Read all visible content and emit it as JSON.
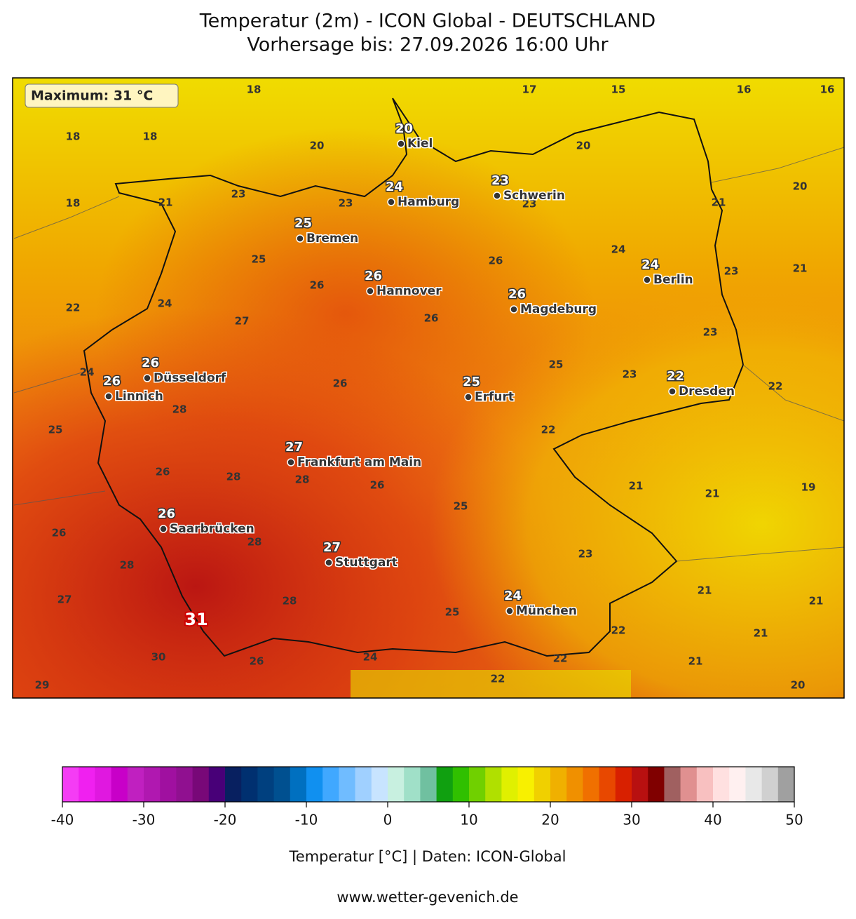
{
  "header": {
    "title": "Temperatur (2m) - ICON Global - DEUTSCHLAND",
    "subtitle": "Vorhersage bis: 27.09.2026 16:00 Uhr"
  },
  "map": {
    "maximum_label": "Maximum: 31 °C",
    "maximum_value": 31,
    "cities": [
      {
        "name": "Kiel",
        "temp": 20
      },
      {
        "name": "Hamburg",
        "temp": 24
      },
      {
        "name": "Schwerin",
        "temp": 23
      },
      {
        "name": "Bremen",
        "temp": 25
      },
      {
        "name": "Hannover",
        "temp": 26
      },
      {
        "name": "Berlin",
        "temp": 24
      },
      {
        "name": "Magdeburg",
        "temp": 26
      },
      {
        "name": "Düsseldorf",
        "temp": 26
      },
      {
        "name": "Linnich",
        "temp": 26
      },
      {
        "name": "Dresden",
        "temp": 22
      },
      {
        "name": "Erfurt",
        "temp": 25
      },
      {
        "name": "Frankfurt am Main",
        "temp": 27
      },
      {
        "name": "Saarbrücken",
        "temp": 26
      },
      {
        "name": "Stuttgart",
        "temp": 27
      },
      {
        "name": "München",
        "temp": 24
      }
    ],
    "contour_labels": [
      18,
      17,
      15,
      16,
      16,
      18,
      18,
      20,
      20,
      23,
      21,
      23,
      23,
      21,
      20,
      18,
      25,
      26,
      24,
      23,
      21,
      26,
      22,
      24,
      27,
      26,
      23,
      24,
      26,
      25,
      23,
      22,
      28,
      25,
      22,
      26,
      28,
      28,
      26,
      25,
      21,
      21,
      19,
      26,
      28,
      28,
      23,
      21,
      27,
      28,
      25,
      21,
      22,
      21,
      30,
      26,
      24,
      22,
      21,
      22,
      20,
      29
    ]
  },
  "colorbar": {
    "lim": [
      -40,
      50
    ],
    "ticks": [
      -40,
      -30,
      -20,
      -10,
      0,
      10,
      20,
      30,
      40,
      50
    ],
    "label": "Temperatur [°C] | Daten: ICON-Global",
    "colors": [
      "#f53cf5",
      "#f020f0",
      "#e018e0",
      "#c800c8",
      "#c020c0",
      "#b018b0",
      "#a010a0",
      "#901090",
      "#780878",
      "#480078",
      "#082060",
      "#003070",
      "#00407f",
      "#005090",
      "#0070c0",
      "#1090f0",
      "#40a8ff",
      "#70bcff",
      "#a0d0ff",
      "#c8e4ff",
      "#c8f0e0",
      "#a0e0c8",
      "#70c0a0",
      "#10a010",
      "#30c000",
      "#70d000",
      "#b0e000",
      "#e0f000",
      "#f8f000",
      "#f0d000",
      "#f0b000",
      "#f09000",
      "#f07000",
      "#e84800",
      "#d82000",
      "#b81010",
      "#800000",
      "#a06060",
      "#e09090",
      "#f8c0c0",
      "#ffe0e0",
      "#fff0f0",
      "#e8e8e8",
      "#d0d0d0",
      "#a0a0a0"
    ]
  },
  "footer": {
    "source": "www.wetter-gevenich.de"
  }
}
